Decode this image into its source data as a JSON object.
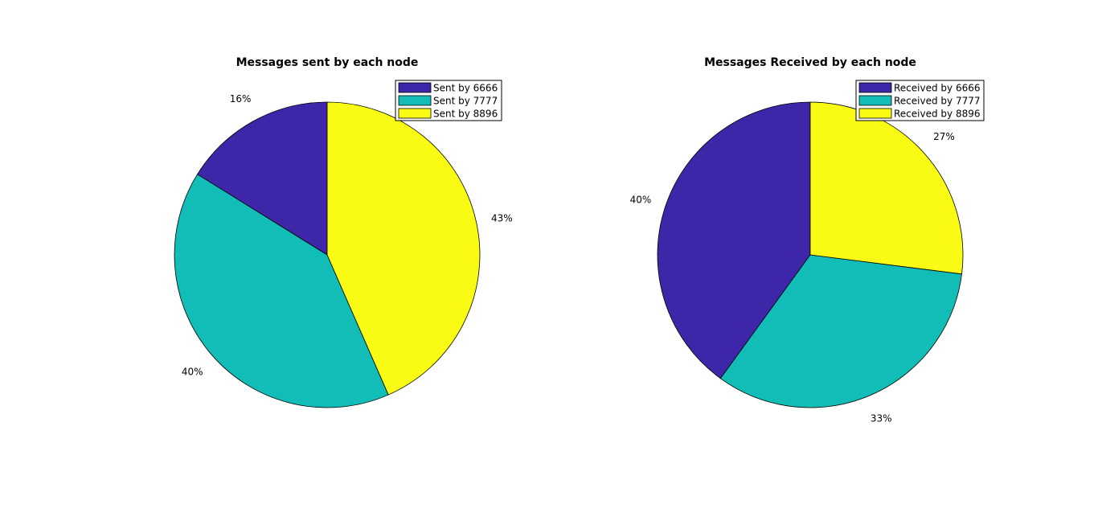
{
  "chart_data": [
    {
      "type": "pie",
      "title": "Messages sent by each node",
      "categories": [
        "Sent by 6666",
        "Sent by 7777",
        "Sent by 8896"
      ],
      "values": [
        16,
        40,
        43
      ],
      "labels": [
        "16%",
        "40%",
        "43%"
      ],
      "colors": [
        "#3e26a8",
        "#13bdb7",
        "#f9fb15"
      ],
      "legend": "top-right"
    },
    {
      "type": "pie",
      "title": "Messages Received by each node",
      "categories": [
        "Received by 6666",
        "Received by 7777",
        "Received by 8896"
      ],
      "values": [
        40,
        33,
        27
      ],
      "labels": [
        "40%",
        "33%",
        "27%"
      ],
      "colors": [
        "#3e26a8",
        "#13bdb7",
        "#f9fb15"
      ],
      "legend": "top-right"
    }
  ]
}
